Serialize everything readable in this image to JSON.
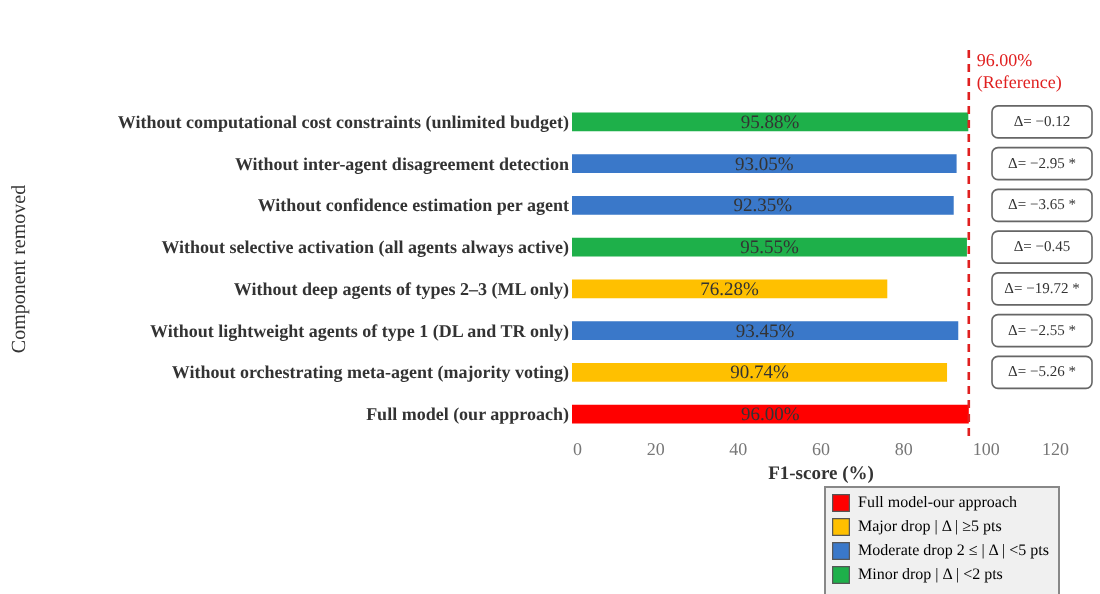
{
  "chart_data": {
    "type": "bar",
    "orientation": "horizontal",
    "xlabel": "F1-score (%)",
    "ylabel": "Component removed",
    "categories": [
      "Without computational cost constraints (unlimited budget)",
      "Without inter-agent disagreement detection",
      "Without confidence estimation per agent",
      "Without selective activation (all agents always active)",
      "Without deep agents of types 2–3 (ML only)",
      "Without lightweight agents of type 1 (DL and TR only)",
      "Without orchestrating meta-agent (majority voting)",
      "Full model (our approach)"
    ],
    "series": [
      {
        "name": "Full model-our approach",
        "color": "#ff0000",
        "values": [
          null,
          null,
          null,
          null,
          null,
          null,
          null,
          96.0
        ],
        "value_labels": [
          null,
          null,
          null,
          null,
          null,
          null,
          null,
          "96.00%"
        ]
      },
      {
        "name": "Major drop   | Δ | ≥5 pts",
        "color": "#ffc000",
        "values": [
          null,
          null,
          null,
          null,
          76.28,
          null,
          90.74,
          null
        ],
        "value_labels": [
          null,
          null,
          null,
          null,
          "76.28%",
          null,
          "90.74%",
          null
        ]
      },
      {
        "name": "Moderate drop 2 ≤ | Δ | <5 pts",
        "color": "#3a78c9",
        "values": [
          null,
          93.05,
          92.35,
          null,
          null,
          93.45,
          null,
          null
        ],
        "value_labels": [
          null,
          "93.05%",
          "92.35%",
          null,
          null,
          "93.45%",
          null,
          null
        ]
      },
      {
        "name": "Minor drop | Δ | <2 pts",
        "color": "#1eb04a",
        "values": [
          95.88,
          null,
          null,
          95.55,
          null,
          null,
          null,
          null
        ],
        "value_labels": [
          "95.88%",
          null,
          null,
          "95.55%",
          null,
          null,
          null,
          null
        ]
      }
    ],
    "xlim": [
      0,
      120
    ],
    "xticks": [
      0,
      20,
      40,
      60,
      80,
      100,
      120
    ],
    "ref_lines": [
      {
        "axis": "x",
        "value": 96.0,
        "label": "96.00% (Reference)",
        "color": "#e02020",
        "line_style": "dashed"
      }
    ],
    "annotations": [
      "Δ= −0.12",
      "Δ= −2.95 *",
      "Δ= −3.65 *",
      "Δ= −0.45",
      "Δ= −19.72 *",
      "Δ= −2.55 *",
      "Δ= −5.26 *"
    ],
    "legend": "bottom right",
    "grid": false
  }
}
